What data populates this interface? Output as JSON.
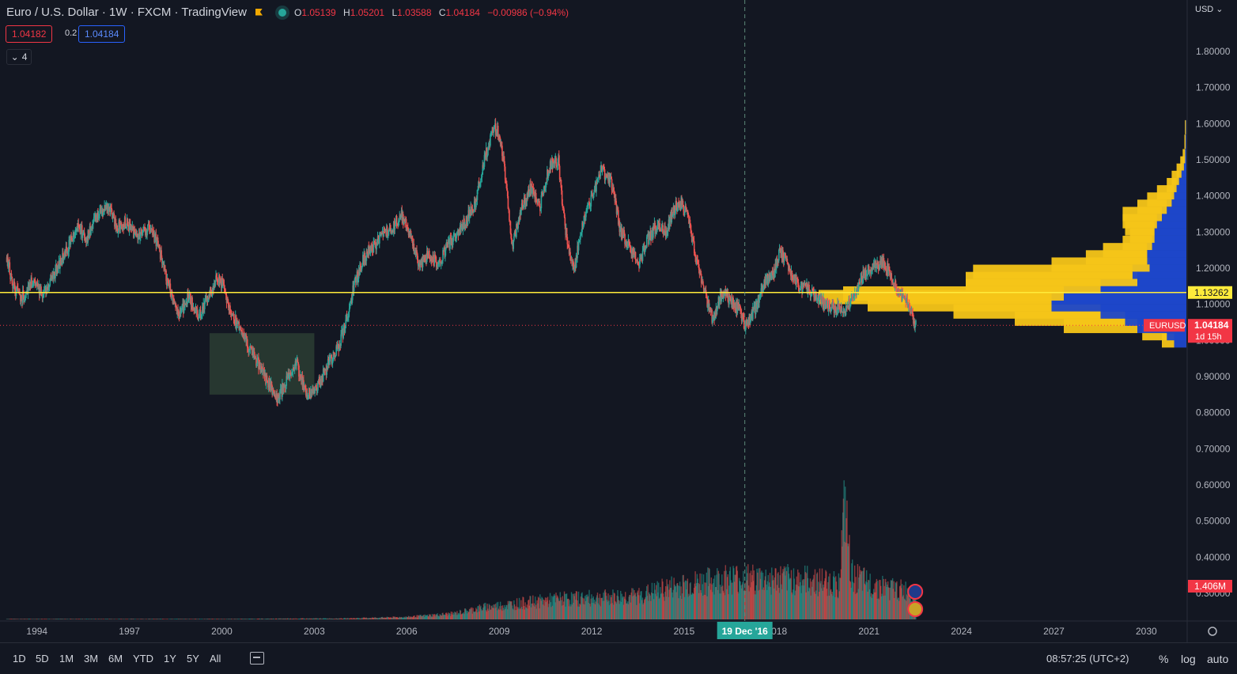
{
  "header": {
    "title": "Euro / U.S. Dollar · 1W · FXCM · TradingView",
    "ohlc": [
      {
        "k": "O",
        "v": "1.05139"
      },
      {
        "k": "H",
        "v": "1.05201"
      },
      {
        "k": "L",
        "v": "1.03588"
      },
      {
        "k": "C",
        "v": "1.04184"
      },
      {
        "k": "",
        "v": "−0.00986 (−0.94%)"
      }
    ],
    "sell_price": "1.04182",
    "spread": "0.2",
    "buy_price": "1.04184",
    "indicator_count": "4",
    "currency": "USD"
  },
  "colors": {
    "background": "#131722",
    "up": "#26a69a",
    "down": "#ef5350",
    "level_line": "#ffeb3b",
    "profile_yellow": "#f5c518",
    "profile_blue": "#1e47c9",
    "price_tag": "#f23645",
    "crosshair_tag": "#26a69a",
    "zone": "#2b3d33"
  },
  "chart_data": {
    "type": "candlestick",
    "symbol": "EURUSD",
    "timeframe": "1W",
    "ylim": [
      0.25,
      1.9
    ],
    "x_range_years": [
      1992.8,
      2031.3
    ],
    "y_ticks": [
      "1.80000",
      "1.70000",
      "1.60000",
      "1.50000",
      "1.40000",
      "1.30000",
      "1.20000",
      "1.10000",
      "1.00000",
      "0.90000",
      "0.80000",
      "0.70000",
      "0.60000",
      "0.50000",
      "0.40000",
      "0.30000"
    ],
    "x_ticks": [
      "1994",
      "1997",
      "2000",
      "2003",
      "2006",
      "2009",
      "2012",
      "2015",
      "2018",
      "2021",
      "2024",
      "2027",
      "2030"
    ],
    "price_path": [
      [
        1993.0,
        1.23
      ],
      [
        1993.2,
        1.15
      ],
      [
        1993.5,
        1.12
      ],
      [
        1993.8,
        1.16
      ],
      [
        1994.2,
        1.13
      ],
      [
        1994.5,
        1.18
      ],
      [
        1994.9,
        1.24
      ],
      [
        1995.3,
        1.32
      ],
      [
        1995.6,
        1.28
      ],
      [
        1996.0,
        1.36
      ],
      [
        1996.3,
        1.37
      ],
      [
        1996.6,
        1.31
      ],
      [
        1996.9,
        1.33
      ],
      [
        1997.2,
        1.29
      ],
      [
        1997.6,
        1.31
      ],
      [
        1997.9,
        1.27
      ],
      [
        1998.2,
        1.16
      ],
      [
        1998.6,
        1.07
      ],
      [
        1998.9,
        1.12
      ],
      [
        1999.2,
        1.07
      ],
      [
        1999.5,
        1.11
      ],
      [
        1999.8,
        1.17
      ],
      [
        2000.0,
        1.16
      ],
      [
        2000.3,
        1.07
      ],
      [
        2000.6,
        1.03
      ],
      [
        2000.9,
        0.97
      ],
      [
        2001.2,
        0.93
      ],
      [
        2001.5,
        0.88
      ],
      [
        2001.8,
        0.84
      ],
      [
        2002.1,
        0.89
      ],
      [
        2002.4,
        0.94
      ],
      [
        2002.7,
        0.85
      ],
      [
        2003.0,
        0.86
      ],
      [
        2003.3,
        0.91
      ],
      [
        2003.6,
        0.96
      ],
      [
        2003.8,
        0.99
      ],
      [
        2004.0,
        1.05
      ],
      [
        2004.3,
        1.16
      ],
      [
        2004.6,
        1.23
      ],
      [
        2004.9,
        1.26
      ],
      [
        2005.2,
        1.29
      ],
      [
        2005.5,
        1.31
      ],
      [
        2005.8,
        1.35
      ],
      [
        2006.1,
        1.29
      ],
      [
        2006.4,
        1.21
      ],
      [
        2006.7,
        1.24
      ],
      [
        2007.0,
        1.21
      ],
      [
        2007.3,
        1.26
      ],
      [
        2007.6,
        1.29
      ],
      [
        2007.9,
        1.33
      ],
      [
        2008.2,
        1.38
      ],
      [
        2008.5,
        1.5
      ],
      [
        2008.8,
        1.59
      ],
      [
        2009.0,
        1.57
      ],
      [
        2009.2,
        1.44
      ],
      [
        2009.4,
        1.26
      ],
      [
        2009.7,
        1.37
      ],
      [
        2010.0,
        1.42
      ],
      [
        2010.3,
        1.37
      ],
      [
        2010.6,
        1.48
      ],
      [
        2010.9,
        1.5
      ],
      [
        2011.1,
        1.32
      ],
      [
        2011.4,
        1.19
      ],
      [
        2011.7,
        1.33
      ],
      [
        2012.0,
        1.4
      ],
      [
        2012.3,
        1.47
      ],
      [
        2012.6,
        1.45
      ],
      [
        2012.9,
        1.31
      ],
      [
        2013.2,
        1.26
      ],
      [
        2013.5,
        1.21
      ],
      [
        2013.8,
        1.28
      ],
      [
        2014.1,
        1.32
      ],
      [
        2014.4,
        1.3
      ],
      [
        2014.7,
        1.37
      ],
      [
        2014.9,
        1.38
      ],
      [
        2015.1,
        1.34
      ],
      [
        2015.4,
        1.21
      ],
      [
        2015.7,
        1.12
      ],
      [
        2015.9,
        1.06
      ],
      [
        2016.2,
        1.13
      ],
      [
        2016.5,
        1.11
      ],
      [
        2016.8,
        1.08
      ],
      [
        2016.97,
        1.04
      ],
      [
        2017.3,
        1.09
      ],
      [
        2017.6,
        1.16
      ],
      [
        2017.9,
        1.19
      ],
      [
        2018.1,
        1.25
      ],
      [
        2018.4,
        1.2
      ],
      [
        2018.7,
        1.15
      ],
      [
        2019.0,
        1.14
      ],
      [
        2019.3,
        1.12
      ],
      [
        2019.6,
        1.1
      ],
      [
        2019.9,
        1.09
      ],
      [
        2020.2,
        1.08
      ],
      [
        2020.5,
        1.13
      ],
      [
        2020.8,
        1.18
      ],
      [
        2021.1,
        1.2
      ],
      [
        2021.4,
        1.22
      ],
      [
        2021.7,
        1.18
      ],
      [
        2021.95,
        1.13
      ],
      [
        2022.2,
        1.11
      ],
      [
        2022.4,
        1.06
      ],
      [
        2022.5,
        1.04
      ]
    ],
    "last_price": "1.04184",
    "countdown": "1d 15h",
    "level_price": "1.13262",
    "level_value": 1.13262,
    "highlight_zone": {
      "x": [
        1999.6,
        2003.0
      ],
      "y": [
        0.85,
        1.02
      ]
    },
    "crosshair": {
      "x": 2016.97,
      "label": "19 Dec '16"
    },
    "volume": {
      "label": "1.406M",
      "ylim": [
        0,
        3.2
      ],
      "path": [
        [
          1993.0,
          0.01
        ],
        [
          2000.0,
          0.01
        ],
        [
          2004.0,
          0.02
        ],
        [
          2006.0,
          0.05
        ],
        [
          2007.5,
          0.12
        ],
        [
          2008.5,
          0.25
        ],
        [
          2009.5,
          0.32
        ],
        [
          2011.0,
          0.42
        ],
        [
          2012.5,
          0.45
        ],
        [
          2013.5,
          0.48
        ],
        [
          2014.5,
          0.65
        ],
        [
          2015.5,
          0.75
        ],
        [
          2016.5,
          0.85
        ],
        [
          2017.5,
          0.82
        ],
        [
          2018.5,
          0.83
        ],
        [
          2019.5,
          0.78
        ],
        [
          2020.0,
          0.72
        ],
        [
          2020.2,
          2.3
        ],
        [
          2020.4,
          0.9
        ],
        [
          2021.0,
          0.72
        ],
        [
          2022.0,
          0.6
        ],
        [
          2022.5,
          0.55
        ]
      ]
    },
    "volume_profile": [
      [
        1.0,
        0.05,
        0.05
      ],
      [
        1.02,
        0.1,
        0.08
      ],
      [
        1.04,
        0.3,
        0.2
      ],
      [
        1.06,
        0.45,
        0.25
      ],
      [
        1.08,
        0.6,
        0.35
      ],
      [
        1.1,
        0.75,
        0.55
      ],
      [
        1.12,
        0.95,
        0.55
      ],
      [
        1.13,
        0.9,
        0.5
      ],
      [
        1.15,
        0.55,
        0.35
      ],
      [
        1.17,
        0.7,
        0.2
      ],
      [
        1.19,
        0.65,
        0.22
      ],
      [
        1.21,
        0.4,
        0.15
      ],
      [
        1.23,
        0.25,
        0.16
      ],
      [
        1.25,
        0.18,
        0.16
      ],
      [
        1.27,
        0.12,
        0.14
      ],
      [
        1.29,
        0.1,
        0.13
      ],
      [
        1.31,
        0.12,
        0.13
      ],
      [
        1.33,
        0.14,
        0.12
      ],
      [
        1.35,
        0.16,
        0.1
      ],
      [
        1.37,
        0.12,
        0.08
      ],
      [
        1.39,
        0.1,
        0.06
      ],
      [
        1.41,
        0.07,
        0.05
      ],
      [
        1.43,
        0.04,
        0.04
      ],
      [
        1.45,
        0.03,
        0.03
      ],
      [
        1.47,
        0.02,
        0.02
      ],
      [
        1.49,
        0.015,
        0.01
      ],
      [
        1.51,
        0.01,
        0.005
      ],
      [
        1.55,
        0.005,
        0.003
      ],
      [
        1.59,
        0.004,
        0.002
      ]
    ]
  },
  "toolbar": {
    "ranges": [
      "1D",
      "5D",
      "1M",
      "3M",
      "6M",
      "YTD",
      "1Y",
      "5Y",
      "All"
    ],
    "clock": "08:57:25 (UTC+2)",
    "percent": "%",
    "log": "log",
    "auto": "auto"
  }
}
